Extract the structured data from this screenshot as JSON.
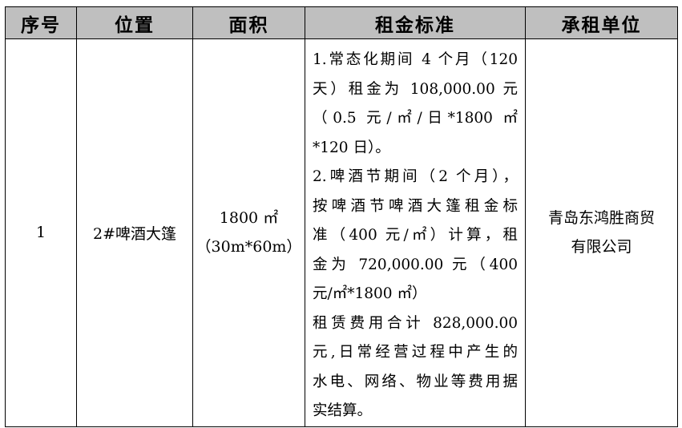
{
  "headers": [
    "序号",
    "位置",
    "面积",
    "租金标准",
    "承租单位"
  ],
  "row": {
    "index": "1",
    "location": "2#啤酒大篷",
    "area_line1": "1800 ㎡",
    "area_line2": "（30m*60m）",
    "rent_lines": [
      "1.常态化期间 4 个月（120",
      "天）租金为 108,000.00 元",
      "（0.5 元/㎡/日*1800 ㎡",
      "*120 日）。",
      "2.啤酒节期间（2 个月），",
      "按啤酒节啤酒大篷租金标",
      "准（400 元/㎡）计算，租",
      "金为 720,000.00 元（400",
      "元/㎡*1800 ㎡）",
      "租赁费用合计 828,000.00",
      "元,日常经营过程中产生的",
      "水电、网络、物业等费用据",
      "实结算。"
    ],
    "tenant_line1": "青岛东鸿胜商贸",
    "tenant_line2": "有限公司"
  }
}
